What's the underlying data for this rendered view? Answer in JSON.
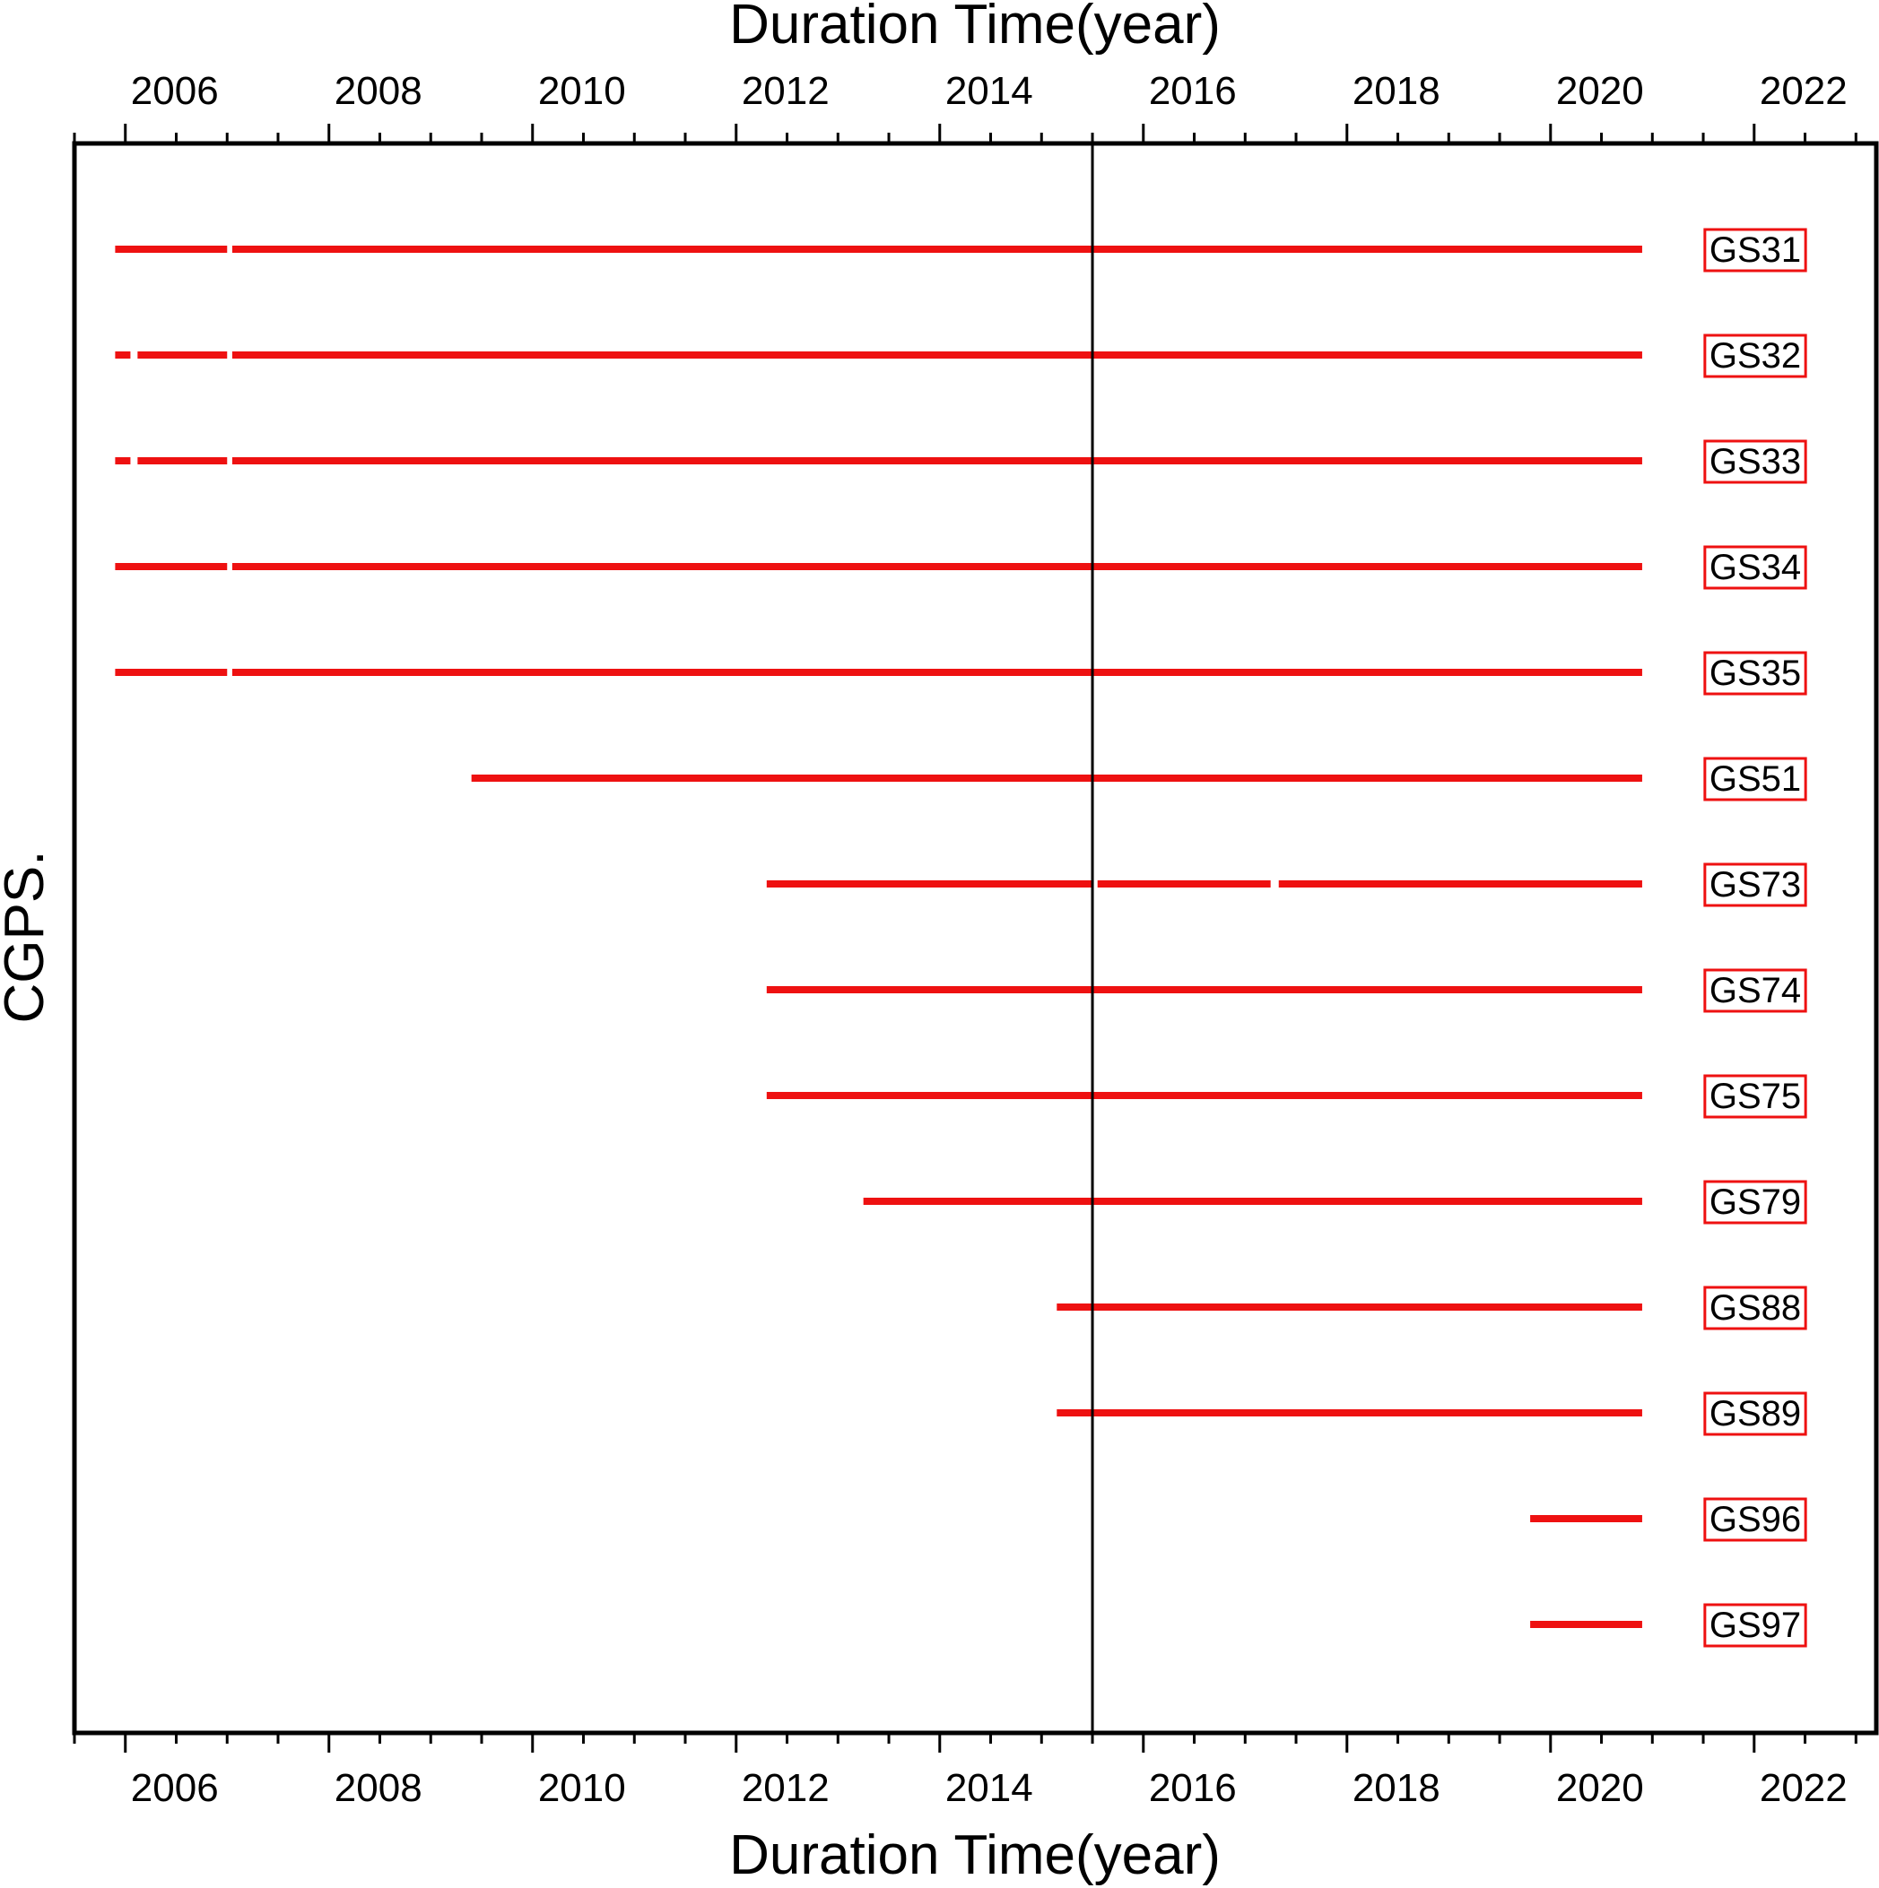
{
  "chart_data": {
    "type": "timeline",
    "title": "",
    "xlabel_top": "Duration Time(year)",
    "xlabel_bottom": "Duration Time(year)",
    "ylabel": "CGPS.",
    "xlim": [
      2005.5,
      2023.2
    ],
    "x_ticks": [
      2006,
      2008,
      2010,
      2012,
      2014,
      2016,
      2018,
      2020,
      2022
    ],
    "x_tick_labels": [
      "2006",
      "2008",
      "2010",
      "2012",
      "2014",
      "2016",
      "2018",
      "2020",
      "2022"
    ],
    "reference_line_x": 2015.5,
    "colors": {
      "segments": "#ee1111",
      "label_border": "#ee1111",
      "frame": "#000000",
      "reference_line": "#000000"
    },
    "stations": [
      {
        "name": "GS31",
        "segments": [
          [
            2005.9,
            2007.0
          ],
          [
            2007.05,
            2020.9
          ]
        ]
      },
      {
        "name": "GS32",
        "segments": [
          [
            2005.9,
            2006.05
          ],
          [
            2006.12,
            2007.0
          ],
          [
            2007.05,
            2020.9
          ]
        ]
      },
      {
        "name": "GS33",
        "segments": [
          [
            2005.9,
            2006.05
          ],
          [
            2006.12,
            2007.0
          ],
          [
            2007.05,
            2020.9
          ]
        ]
      },
      {
        "name": "GS34",
        "segments": [
          [
            2005.9,
            2007.0
          ],
          [
            2007.05,
            2020.9
          ]
        ]
      },
      {
        "name": "GS35",
        "segments": [
          [
            2005.9,
            2007.0
          ],
          [
            2007.05,
            2020.9
          ]
        ]
      },
      {
        "name": "GS51",
        "segments": [
          [
            2009.4,
            2020.9
          ]
        ]
      },
      {
        "name": "GS73",
        "segments": [
          [
            2012.3,
            2015.5
          ],
          [
            2015.55,
            2017.25
          ],
          [
            2017.33,
            2020.9
          ]
        ]
      },
      {
        "name": "GS74",
        "segments": [
          [
            2012.3,
            2020.9
          ]
        ]
      },
      {
        "name": "GS75",
        "segments": [
          [
            2012.3,
            2020.9
          ]
        ]
      },
      {
        "name": "GS79",
        "segments": [
          [
            2013.25,
            2020.9
          ]
        ]
      },
      {
        "name": "GS88",
        "segments": [
          [
            2015.15,
            2020.9
          ]
        ]
      },
      {
        "name": "GS89",
        "segments": [
          [
            2015.15,
            2020.9
          ]
        ]
      },
      {
        "name": "GS96",
        "segments": [
          [
            2019.8,
            2020.9
          ]
        ]
      },
      {
        "name": "GS97",
        "segments": [
          [
            2019.8,
            2020.9
          ]
        ]
      }
    ]
  }
}
